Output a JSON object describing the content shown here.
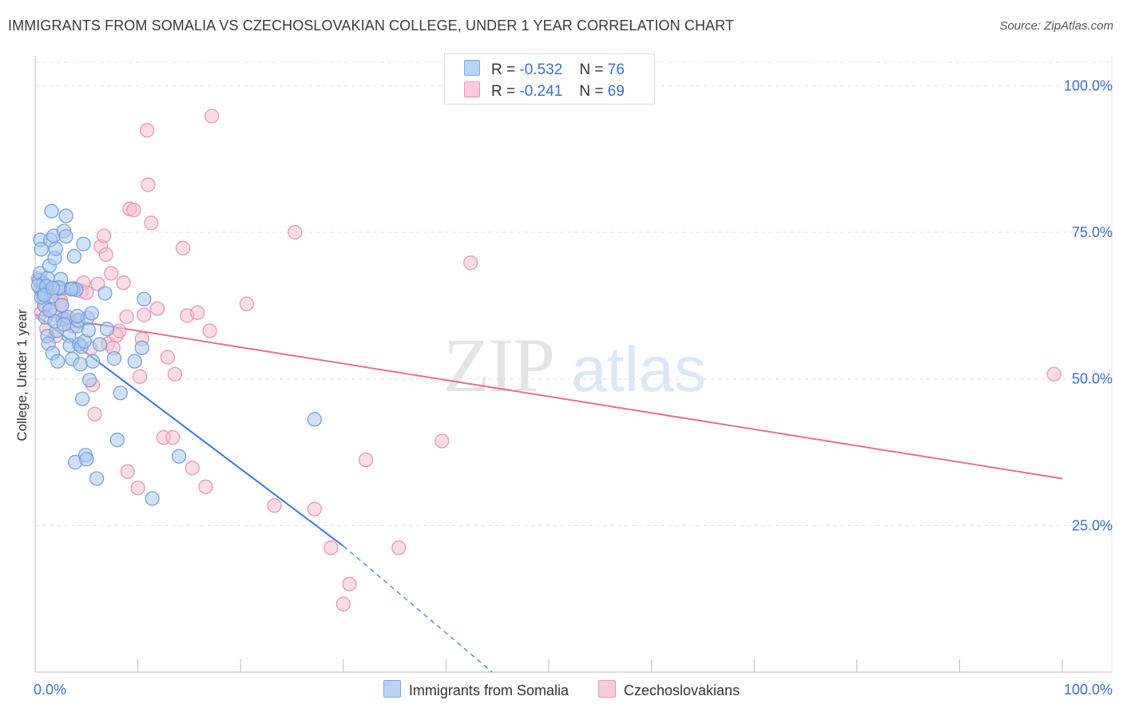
{
  "title": "IMMIGRANTS FROM SOMALIA VS CZECHOSLOVAKIAN COLLEGE, UNDER 1 YEAR CORRELATION CHART",
  "source": "Source: ZipAtlas.com",
  "watermark": {
    "zip": "ZIP",
    "atlas": "atlas"
  },
  "legend": {
    "row1": {
      "r_label": "R =",
      "r_value": "-0.532",
      "n_label": "N =",
      "n_value": "76"
    },
    "row2": {
      "r_label": "R =",
      "r_value": "-0.241",
      "n_label": "N =",
      "n_value": "69"
    }
  },
  "bottom_legend": {
    "series1": "Immigrants from Somalia",
    "series2": "Czechoslovakians"
  },
  "colors": {
    "blue_fill": "#a9c8f0",
    "blue_stroke": "#6e9fdc",
    "blue_line": "#3a7ad6",
    "pink_fill": "#f6c0d2",
    "pink_stroke": "#ea8fb0",
    "pink_line": "#e46e98",
    "tick_label": "#3a72c8",
    "grid": "#e6e6e6"
  },
  "chart_data": {
    "type": "scatter",
    "title": "IMMIGRANTS FROM SOMALIA VS CZECHOSLOVAKIAN COLLEGE, UNDER 1 YEAR CORRELATION CHART",
    "xlabel": "",
    "ylabel": "College, Under 1 year",
    "xlim": [
      0,
      100
    ],
    "ylim": [
      0,
      104
    ],
    "x_tick_labels": [
      "0.0%",
      "100.0%"
    ],
    "y_ticks": [
      25,
      50,
      75,
      100
    ],
    "y_tick_labels": [
      "25.0%",
      "50.0%",
      "75.0%",
      "100.0%"
    ],
    "grid": true,
    "series": [
      {
        "name": "Immigrants from Somalia",
        "R": -0.532,
        "N": 76,
        "trend": {
          "x0": 0,
          "y0": 61.0,
          "x1": 30,
          "y1": 21.5,
          "dash_to_x": 44.5,
          "dash_to_y": 0
        },
        "points": [
          [
            0.4,
            66.8
          ],
          [
            0.5,
            68.0
          ],
          [
            0.5,
            73.7
          ],
          [
            0.6,
            72.1
          ],
          [
            0.7,
            65.2
          ],
          [
            0.8,
            66.3
          ],
          [
            0.8,
            64.5
          ],
          [
            0.9,
            62.5
          ],
          [
            1.0,
            60.5
          ],
          [
            1.2,
            67.2
          ],
          [
            1.2,
            57.3
          ],
          [
            1.3,
            56.0
          ],
          [
            1.4,
            69.3
          ],
          [
            1.5,
            73.7
          ],
          [
            1.6,
            78.6
          ],
          [
            1.6,
            64.1
          ],
          [
            1.7,
            54.4
          ],
          [
            1.8,
            74.4
          ],
          [
            1.9,
            70.6
          ],
          [
            2.0,
            72.2
          ],
          [
            2.1,
            58.2
          ],
          [
            2.2,
            53.0
          ],
          [
            2.4,
            65.4
          ],
          [
            2.5,
            67.0
          ],
          [
            2.6,
            62.6
          ],
          [
            2.7,
            60.2
          ],
          [
            2.8,
            75.2
          ],
          [
            3.0,
            77.8
          ],
          [
            3.0,
            74.3
          ],
          [
            3.2,
            60.5
          ],
          [
            3.3,
            57.3
          ],
          [
            3.4,
            55.7
          ],
          [
            3.6,
            53.4
          ],
          [
            3.7,
            65.4
          ],
          [
            3.8,
            70.9
          ],
          [
            3.9,
            35.8
          ],
          [
            4.0,
            65.2
          ],
          [
            4.1,
            59.0
          ],
          [
            4.2,
            60.0
          ],
          [
            4.3,
            55.9
          ],
          [
            4.4,
            52.5
          ],
          [
            4.5,
            55.5
          ],
          [
            4.6,
            46.6
          ],
          [
            4.7,
            73.0
          ],
          [
            4.8,
            56.4
          ],
          [
            4.9,
            37.0
          ],
          [
            5.0,
            36.3
          ],
          [
            5.1,
            60.4
          ],
          [
            5.2,
            58.3
          ],
          [
            5.3,
            49.8
          ],
          [
            5.6,
            53.0
          ],
          [
            6.0,
            33.0
          ],
          [
            6.3,
            55.9
          ],
          [
            6.8,
            64.6
          ],
          [
            7.0,
            58.5
          ],
          [
            8.0,
            39.6
          ],
          [
            8.3,
            47.6
          ],
          [
            9.7,
            53.0
          ],
          [
            10.4,
            55.3
          ],
          [
            10.6,
            63.6
          ],
          [
            11.4,
            29.6
          ],
          [
            14.0,
            36.8
          ],
          [
            27.2,
            43.1
          ],
          [
            0.3,
            65.9
          ],
          [
            0.6,
            63.9
          ],
          [
            1.1,
            65.8
          ],
          [
            1.9,
            59.8
          ],
          [
            2.3,
            65.6
          ],
          [
            3.5,
            65.3
          ],
          [
            4.1,
            60.7
          ],
          [
            0.9,
            64.3
          ],
          [
            1.4,
            61.7
          ],
          [
            2.8,
            59.3
          ],
          [
            5.5,
            61.2
          ],
          [
            7.7,
            53.5
          ],
          [
            1.7,
            65.5
          ]
        ]
      },
      {
        "name": "Czechoslovakians",
        "R": -0.241,
        "N": 69,
        "trend": {
          "x0": 0,
          "y0": 61.0,
          "x1": 100,
          "y1": 33.0
        },
        "points": [
          [
            0.3,
            67.1
          ],
          [
            0.5,
            65.3
          ],
          [
            0.6,
            61.2
          ],
          [
            0.8,
            64.0
          ],
          [
            1.0,
            62.4
          ],
          [
            1.3,
            64.9
          ],
          [
            1.5,
            61.9
          ],
          [
            1.9,
            60.9
          ],
          [
            2.0,
            57.3
          ],
          [
            2.3,
            64.2
          ],
          [
            2.6,
            62.5
          ],
          [
            2.9,
            60.2
          ],
          [
            3.2,
            59.5
          ],
          [
            3.5,
            65.4
          ],
          [
            3.7,
            59.0
          ],
          [
            4.2,
            59.8
          ],
          [
            4.5,
            65.0
          ],
          [
            4.7,
            66.4
          ],
          [
            5.0,
            64.7
          ],
          [
            5.4,
            55.2
          ],
          [
            5.6,
            49.0
          ],
          [
            5.8,
            44.0
          ],
          [
            6.1,
            66.2
          ],
          [
            6.4,
            72.6
          ],
          [
            6.7,
            74.4
          ],
          [
            6.9,
            71.2
          ],
          [
            7.1,
            56.0
          ],
          [
            7.4,
            68.0
          ],
          [
            7.9,
            57.4
          ],
          [
            8.2,
            58.2
          ],
          [
            8.6,
            66.4
          ],
          [
            8.9,
            60.6
          ],
          [
            9.0,
            34.2
          ],
          [
            9.2,
            79.0
          ],
          [
            9.6,
            78.8
          ],
          [
            10.0,
            31.4
          ],
          [
            10.2,
            50.4
          ],
          [
            10.4,
            56.8
          ],
          [
            10.6,
            60.9
          ],
          [
            10.9,
            92.4
          ],
          [
            11.0,
            83.1
          ],
          [
            11.3,
            76.6
          ],
          [
            11.9,
            62.0
          ],
          [
            12.5,
            40.0
          ],
          [
            12.9,
            53.7
          ],
          [
            13.4,
            40.0
          ],
          [
            13.6,
            50.8
          ],
          [
            14.4,
            72.3
          ],
          [
            14.8,
            60.8
          ],
          [
            15.3,
            34.8
          ],
          [
            15.8,
            61.3
          ],
          [
            16.6,
            31.6
          ],
          [
            17.0,
            58.2
          ],
          [
            17.2,
            94.8
          ],
          [
            20.6,
            62.8
          ],
          [
            23.3,
            28.4
          ],
          [
            25.3,
            75.0
          ],
          [
            27.2,
            27.8
          ],
          [
            28.8,
            21.2
          ],
          [
            30.0,
            11.6
          ],
          [
            30.6,
            15.0
          ],
          [
            32.2,
            36.2
          ],
          [
            35.4,
            21.2
          ],
          [
            39.6,
            39.4
          ],
          [
            42.4,
            69.8
          ],
          [
            99.2,
            50.8
          ],
          [
            1.1,
            58.5
          ],
          [
            2.5,
            63.3
          ],
          [
            7.6,
            55.3
          ]
        ]
      }
    ]
  }
}
